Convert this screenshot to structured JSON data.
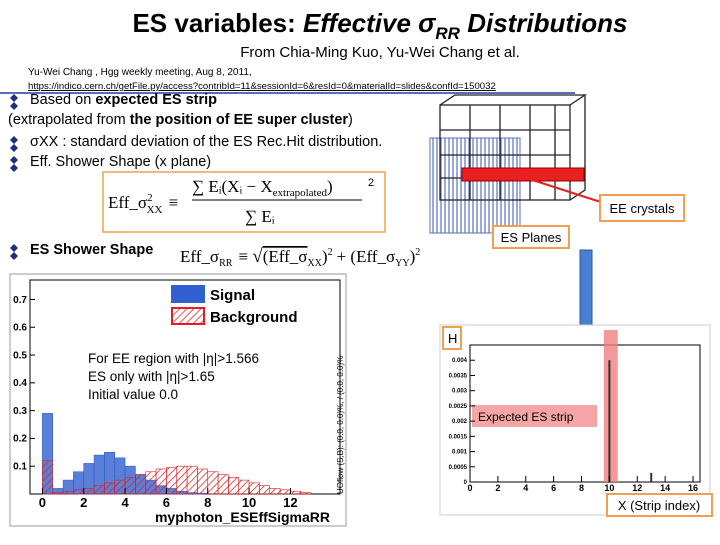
{
  "slide": {
    "title": {
      "lead": "ES variables:",
      "italic": "Effective σ",
      "sub": "RR",
      "tail": "Distributions"
    },
    "subtitle": "From Chia-Ming Kuo, Yu-Wei Chang et al.",
    "reference": {
      "meeting": "Yu-Wei Chang , Hgg weekly meeting,  Aug 8, 2011,",
      "url": "https://indico.cern.ch/getFile.py/access?contribId=11&sessionId=6&resId=0&materialId=slides&confId=150032"
    },
    "lines": [
      {
        "marker": true,
        "segments": [
          {
            "text": "Based on ",
            "bold": false
          },
          {
            "text": "expected ES strip",
            "bold": true
          }
        ]
      },
      {
        "marker": false,
        "segments": [
          {
            "text": "(extrapolated from ",
            "bold": false
          },
          {
            "text": "the position of EE super cluster",
            "bold": true
          },
          {
            "text": ")",
            "bold": false
          }
        ]
      },
      {
        "marker": true,
        "segments": [
          {
            "text": "σXX : standard deviation of the ES Rec.Hit distribution.",
            "bold": false
          }
        ]
      },
      {
        "marker": true,
        "segments": [
          {
            "text": "Eff. Shower Shape (x plane)",
            "bold": false
          }
        ]
      },
      {
        "marker": true,
        "segments": [
          {
            "text": "ES Shower Shape",
            "bold": true
          }
        ]
      }
    ],
    "formula_x": {
      "lhs": "Eff_σ",
      "lhs_sup": "2",
      "lhs_sub": "XX",
      "equiv": "≡",
      "num": "∑ Eᵢ(Xᵢ − X",
      "num_sub": "extrapolated",
      "num_close": ")",
      "den": "∑ Eᵢ",
      "power": "2"
    },
    "formula_r": {
      "lhs": "Eff_σ",
      "lhs_sub": "RR",
      "equiv": "≡",
      "root": "√",
      "a": "(Eff_σ",
      "a_sub": "XX",
      "a_close": ")",
      "a_pow": "2",
      "plus": "+",
      "b": "(Eff_σ",
      "b_sub": "YY",
      "b_close": ")",
      "b_pow": "2"
    },
    "diagram": {
      "crystals": "EE crystals",
      "planes": "ES Planes"
    }
  },
  "chart_data": [
    {
      "type": "histogram",
      "bins": [
        0,
        0.5,
        1,
        1.5,
        2,
        2.5,
        3,
        3.5,
        4,
        4.5,
        5,
        5.5,
        6,
        6.5,
        7,
        7.5,
        8,
        8.5,
        9,
        9.5,
        10,
        10.5,
        11,
        11.5,
        12,
        12.5,
        13
      ],
      "series": [
        {
          "name": "Signal",
          "color": "#2f5fd0",
          "values": [
            0.29,
            0.02,
            0.05,
            0.08,
            0.11,
            0.14,
            0.15,
            0.13,
            0.1,
            0.07,
            0.05,
            0.03,
            0.02,
            0.01,
            0.005,
            0.003,
            0,
            0,
            0,
            0,
            0,
            0,
            0,
            0,
            0,
            0
          ]
        },
        {
          "name": "Background",
          "color": "#e02020",
          "values": [
            0.12,
            0.005,
            0.01,
            0.015,
            0.02,
            0.03,
            0.04,
            0.05,
            0.06,
            0.07,
            0.08,
            0.09,
            0.095,
            0.1,
            0.1,
            0.09,
            0.08,
            0.07,
            0.06,
            0.05,
            0.04,
            0.03,
            0.02,
            0.015,
            0.01,
            0.005
          ]
        }
      ],
      "xlim": [
        -0.6,
        14.4
      ],
      "ylim": [
        0,
        0.77
      ],
      "xticks": [
        0,
        2,
        4,
        6,
        8,
        10,
        12
      ],
      "yticks": [
        0.1,
        0.2,
        0.3,
        0.4,
        0.5,
        0.6,
        0.7
      ],
      "xlabel": "myphoton_ESEffSigmaRR",
      "annotations": [
        "For EE region with |η|>1.566",
        "ES only with |η|>1.65",
        "Initial value 0.0"
      ],
      "side_note": "UOflow (S,B): (0.0, 0.0)%, / (0.0, 0.0)%"
    },
    {
      "type": "bar",
      "title": "H",
      "x": [
        10,
        13
      ],
      "values": [
        0.004,
        0.0003
      ],
      "color": "#333333",
      "xlim": [
        0,
        16.5
      ],
      "ylim": [
        0,
        0.0045
      ],
      "xticks": [
        0,
        2,
        4,
        6,
        8,
        10,
        12,
        14,
        16
      ],
      "yticks": [
        0,
        0.0005,
        0.001,
        0.0015,
        0.002,
        0.0025,
        0.003,
        0.0035,
        0.004
      ],
      "xlabel": "X (Strip index)",
      "annotation": "Expected ES strip"
    }
  ]
}
